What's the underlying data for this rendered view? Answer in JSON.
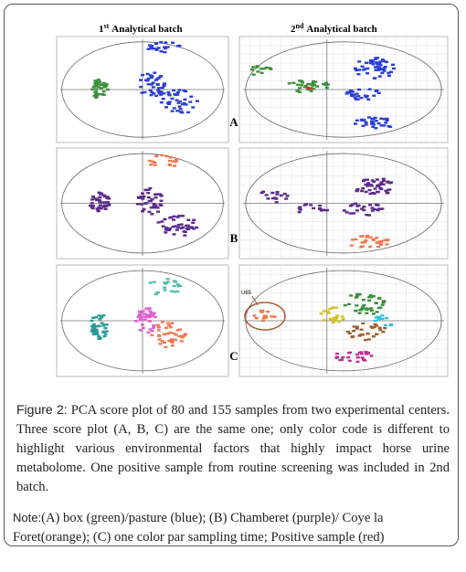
{
  "figure": {
    "columns": [
      {
        "ordinal": "1",
        "suffix": "st",
        "title": "Analytical batch"
      },
      {
        "ordinal": "2",
        "suffix": "nd",
        "title": "Analytical batch"
      }
    ],
    "panels": [
      "A",
      "B",
      "C"
    ],
    "outlier_label": "U65",
    "caption": {
      "label": "Figure 2:",
      "text": "PCA score plot of 80 and 155 samples from two experimental centers. Three score plot (A, B, C) are the same one; only color code is different to highlight various environmental factors that highly impact horse urine metabolome. One positive sample from routine screening was included in 2nd batch."
    },
    "note": {
      "label": "Note:",
      "text": "(A) box (green)/pasture (blue); (B) Chamberet (purple)/ Coye la Foret(orange); (C) one color par sampling time; Positive sample (red)"
    }
  }
}
